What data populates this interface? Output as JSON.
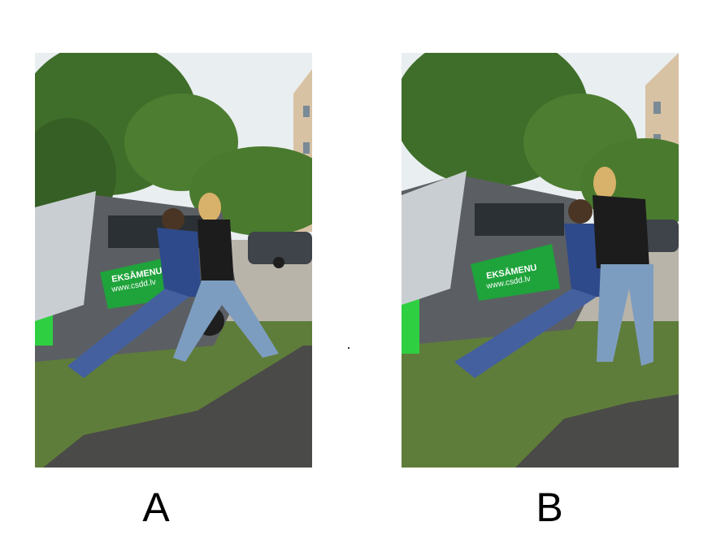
{
  "panels": [
    {
      "label": "A",
      "car_text_line1": "EKSĀMENU",
      "car_text_line2": "www.csdd.lv"
    },
    {
      "label": "B",
      "car_text_line1": "EKSĀMENU",
      "car_text_line2": "www.csdd.lv"
    }
  ]
}
